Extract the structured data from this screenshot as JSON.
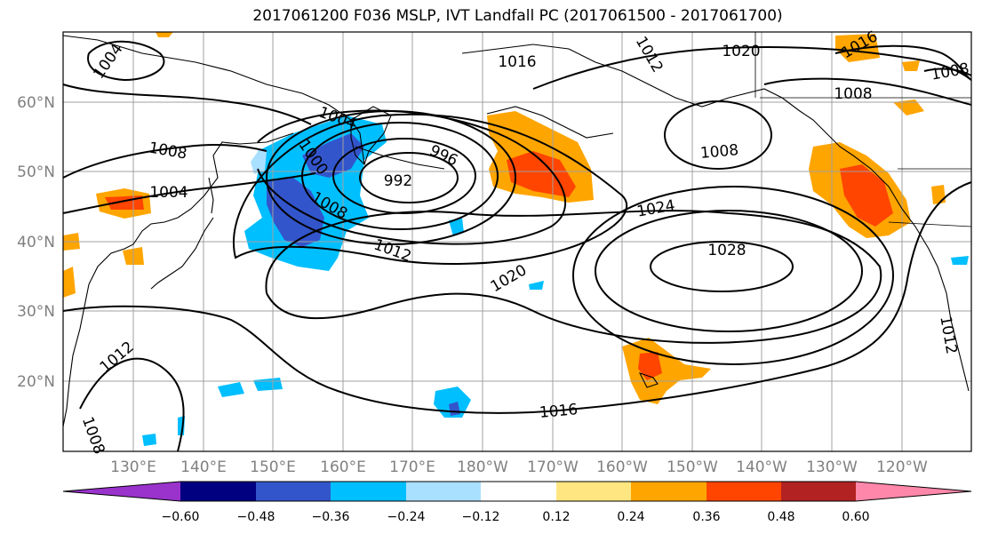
{
  "title": "2017061200 F036 MSLP, IVT Landfall PC (2017061500 - 2017061700)",
  "map": {
    "lat_ticks": [
      "60°N",
      "50°N",
      "40°N",
      "30°N",
      "20°N"
    ],
    "lon_ticks": [
      "130°E",
      "140°E",
      "150°E",
      "160°E",
      "170°E",
      "180°W",
      "170°W",
      "160°W",
      "150°W",
      "140°W",
      "130°W",
      "120°W"
    ],
    "tick_color": "#808080"
  },
  "isobar_labels": [
    {
      "id": "a",
      "text": "1004"
    },
    {
      "id": "b",
      "text": "1016"
    },
    {
      "id": "c",
      "text": "1012"
    },
    {
      "id": "d",
      "text": "1020"
    },
    {
      "id": "e",
      "text": "1016"
    },
    {
      "id": "f",
      "text": "1008"
    },
    {
      "id": "g",
      "text": "1008"
    },
    {
      "id": "h",
      "text": "1004"
    },
    {
      "id": "i",
      "text": "1008"
    },
    {
      "id": "j",
      "text": "996"
    },
    {
      "id": "k",
      "text": "1008"
    },
    {
      "id": "l",
      "text": "992"
    },
    {
      "id": "m",
      "text": "1004"
    },
    {
      "id": "n",
      "text": "1000"
    },
    {
      "id": "o",
      "text": "1008"
    },
    {
      "id": "p",
      "text": "1024"
    },
    {
      "id": "q",
      "text": "1012"
    },
    {
      "id": "r",
      "text": "1028"
    },
    {
      "id": "s",
      "text": "1020"
    },
    {
      "id": "t",
      "text": "1012"
    },
    {
      "id": "u",
      "text": "1016"
    },
    {
      "id": "v",
      "text": "1012"
    },
    {
      "id": "w",
      "text": "1008"
    }
  ],
  "colorbar": {
    "colors": [
      "#9933cc",
      "#000080",
      "#3355cc",
      "#00bfff",
      "#aae0ff",
      "#ffffff",
      "#ffe680",
      "#ffa500",
      "#ff4500",
      "#b22222",
      "#ff88aa"
    ],
    "labels": [
      "−0.60",
      "−0.48",
      "−0.36",
      "−0.24",
      "−0.12",
      "0.12",
      "0.24",
      "0.36",
      "0.48",
      "0.60"
    ]
  }
}
